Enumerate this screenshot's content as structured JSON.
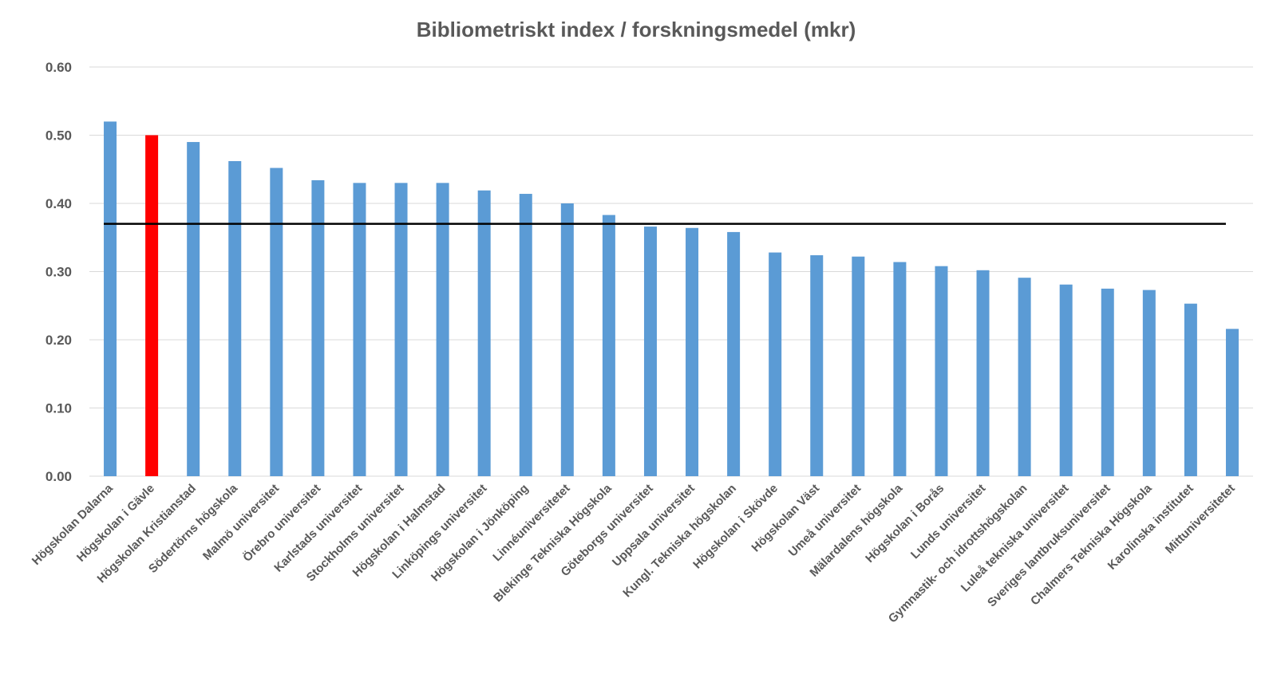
{
  "chart_data": {
    "type": "bar",
    "title": "Bibliometriskt  index / forskningsmedel  (mkr)",
    "xlabel": "",
    "ylabel": "",
    "ylim": [
      0,
      0.6
    ],
    "y_ticks": [
      "0.00",
      "0.10",
      "0.20",
      "0.30",
      "0.40",
      "0.50",
      "0.60"
    ],
    "y_tick_values": [
      0,
      0.1,
      0.2,
      0.3,
      0.4,
      0.5,
      0.6
    ],
    "grid": true,
    "legend": "none",
    "categories": [
      "Högskolan Dalarna",
      "Högskolan i Gävle",
      "Högskolan Kristianstad",
      "Södertörns högskola",
      "Malmö universitet",
      "Örebro universitet",
      "Karlstads universitet",
      "Stockholms universitet",
      "Högskolan i Halmstad",
      "Linköpings universitet",
      "Högskolan i Jönköping",
      "Linnéuniversitetet",
      "Blekinge Tekniska Högskola",
      "Göteborgs universitet",
      "Uppsala universitet",
      "Kungl. Tekniska högskolan",
      "Högskolan i Skövde",
      "Högskolan Väst",
      "Umeå universitet",
      "Mälardalens högskola",
      "Högskolan i Borås",
      "Lunds universitet",
      "Gymnastik- och idrottshögskolan",
      "Luleå tekniska universitet",
      "Sveriges lantbruksuniversitet",
      "Chalmers Tekniska Högskola",
      "Karolinska institutet",
      "Mittuniversitetet"
    ],
    "values": [
      0.52,
      0.5,
      0.49,
      0.462,
      0.452,
      0.434,
      0.43,
      0.43,
      0.43,
      0.419,
      0.414,
      0.4,
      0.383,
      0.366,
      0.364,
      0.358,
      0.328,
      0.324,
      0.322,
      0.314,
      0.308,
      0.302,
      0.291,
      0.281,
      0.275,
      0.273,
      0.253,
      0.216
    ],
    "highlight_index": 1,
    "reference_line": 0.37,
    "colors": {
      "bar": "#5b9bd5",
      "highlight": "#ff0000",
      "reference_line": "#000000",
      "grid": "#d9d9d9",
      "text": "#595959"
    }
  }
}
